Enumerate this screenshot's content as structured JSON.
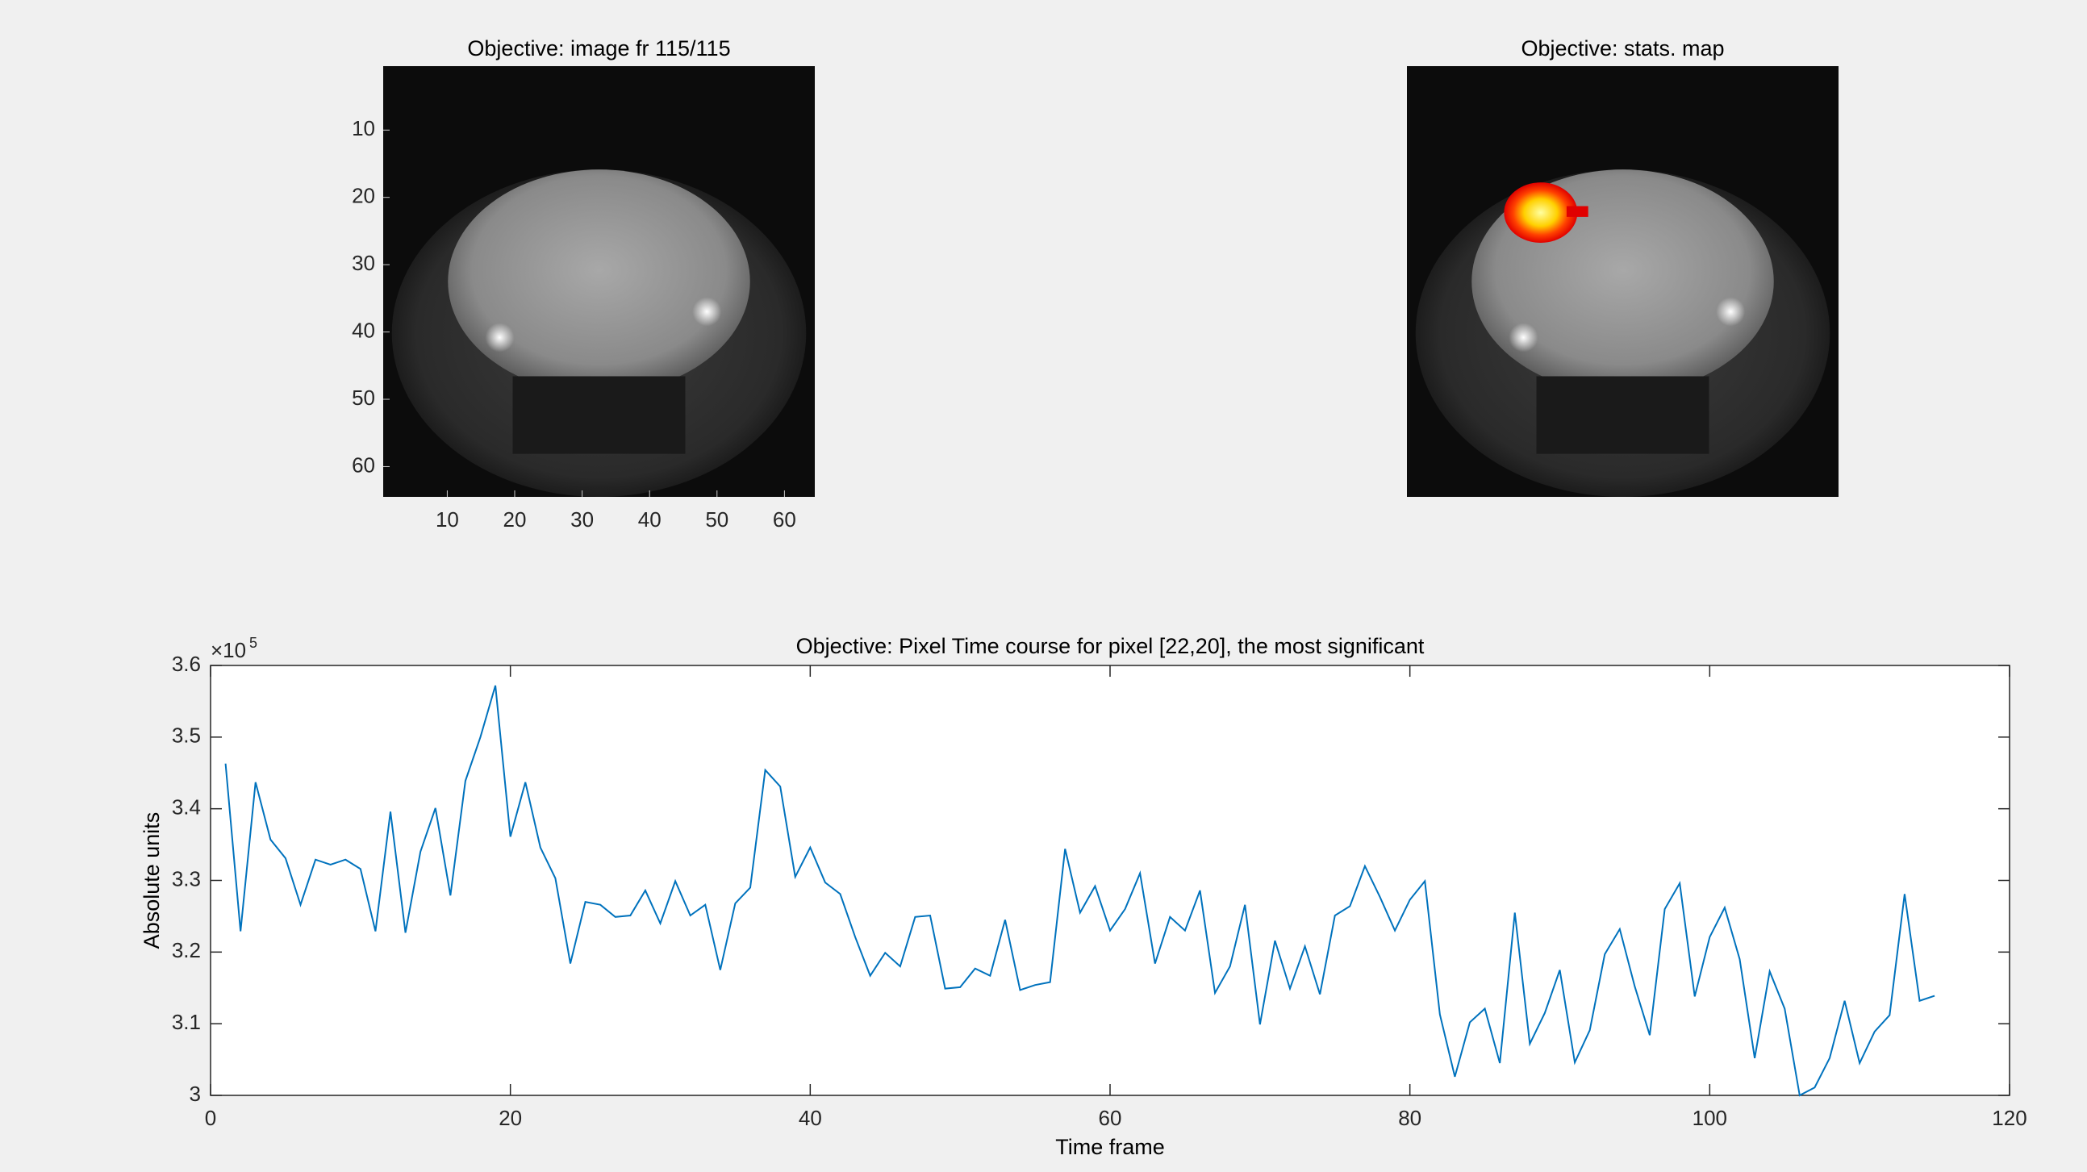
{
  "chart_data": [
    {
      "type": "image",
      "title": "Objective: image fr 115/115",
      "xlim": [
        0.5,
        64.5
      ],
      "ylim": [
        0.5,
        64.5
      ],
      "xticks": [
        10,
        20,
        30,
        40,
        50,
        60
      ],
      "yticks": [
        10,
        20,
        30,
        40,
        50,
        60
      ]
    },
    {
      "type": "image",
      "title": "Objective: stats. map",
      "overlay": true
    },
    {
      "type": "line",
      "title": "Objective: Pixel Time course for pixel [22,20], the most significant",
      "xlabel": "Time frame",
      "ylabel": "Absolute units",
      "y_multiplier_base": "×10",
      "y_multiplier_exponent": "5",
      "color": "#0072bd",
      "xlim": [
        0,
        120
      ],
      "xticks": [
        0,
        20,
        40,
        60,
        80,
        100,
        120
      ],
      "ylim": [
        3,
        3.6
      ],
      "yticks": [
        3,
        3.1,
        3.2,
        3.3,
        3.4,
        3.5,
        3.6
      ],
      "x": [
        1,
        2,
        3,
        4,
        5,
        6,
        7,
        8,
        9,
        10,
        11,
        12,
        13,
        14,
        15,
        16,
        17,
        18,
        19,
        20,
        21,
        22,
        23,
        24,
        25,
        26,
        27,
        28,
        29,
        30,
        31,
        32,
        33,
        34,
        35,
        36,
        37,
        38,
        39,
        40,
        41,
        42,
        43,
        44,
        45,
        46,
        47,
        48,
        49,
        50,
        51,
        52,
        53,
        54,
        55,
        56,
        57,
        58,
        59,
        60,
        61,
        62,
        63,
        64,
        65,
        66,
        67,
        68,
        69,
        70,
        71,
        72,
        73,
        74,
        75,
        76,
        77,
        78,
        79,
        80,
        81,
        82,
        83,
        84,
        85,
        86,
        87,
        88,
        89,
        90,
        91,
        92,
        93,
        94,
        95,
        96,
        97,
        98,
        99,
        100,
        101,
        102,
        103,
        104,
        105,
        106,
        107,
        108,
        109,
        110,
        111,
        112,
        113,
        114,
        115
      ],
      "values": [
        3.463,
        3.229,
        3.437,
        3.357,
        3.331,
        3.266,
        3.329,
        3.322,
        3.329,
        3.316,
        3.229,
        3.396,
        3.227,
        3.34,
        3.401,
        3.279,
        3.439,
        3.5,
        3.572,
        3.361,
        3.437,
        3.346,
        3.303,
        3.184,
        3.27,
        3.266,
        3.249,
        3.251,
        3.286,
        3.24,
        3.299,
        3.251,
        3.266,
        3.175,
        3.268,
        3.29,
        3.454,
        3.431,
        3.305,
        3.346,
        3.297,
        3.281,
        3.221,
        3.167,
        3.199,
        3.18,
        3.249,
        3.251,
        3.149,
        3.151,
        3.177,
        3.167,
        3.245,
        3.147,
        3.154,
        3.158,
        3.344,
        3.255,
        3.292,
        3.23,
        3.26,
        3.31,
        3.184,
        3.249,
        3.23,
        3.286,
        3.143,
        3.18,
        3.266,
        3.099,
        3.216,
        3.149,
        3.208,
        3.141,
        3.251,
        3.264,
        3.32,
        3.277,
        3.23,
        3.273,
        3.299,
        3.113,
        3.026,
        3.102,
        3.121,
        3.045,
        3.255,
        3.072,
        3.115,
        3.175,
        3.046,
        3.091,
        3.197,
        3.232,
        3.152,
        3.084,
        3.26,
        3.296,
        3.138,
        3.221,
        3.262,
        3.19,
        3.052,
        3.173,
        3.121,
        3.0,
        3.011,
        3.052,
        3.132,
        3.045,
        3.089,
        3.112,
        3.281,
        3.132,
        3.139
      ]
    }
  ]
}
